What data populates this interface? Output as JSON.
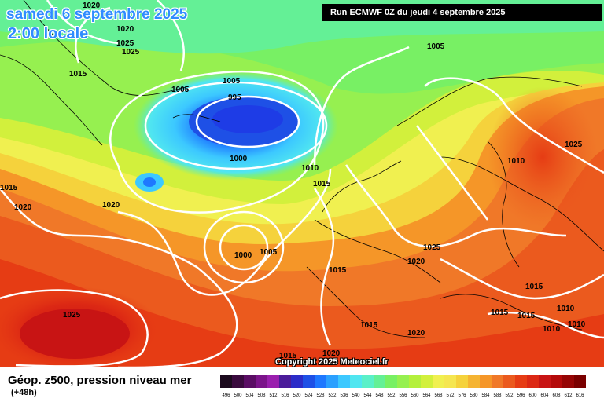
{
  "header": {
    "date": "samedi 6 septembre 2025",
    "time": "2:00 locale",
    "run": "Run ECMWF 0Z du jeudi 4 septembre 2025"
  },
  "copyright": "Copyright 2025 Meteociel.fr",
  "legend": {
    "title": "Géop. z500, pression niveau mer",
    "subtitle": "(+48h)",
    "scale_labels": [
      "496",
      "500",
      "504",
      "508",
      "512",
      "516",
      "520",
      "524",
      "528",
      "532",
      "536",
      "540",
      "544",
      "548",
      "552",
      "556",
      "560",
      "564",
      "568",
      "572",
      "576",
      "580",
      "584",
      "588",
      "592",
      "596",
      "600",
      "604",
      "608",
      "612",
      "616"
    ],
    "scale_colors": [
      "#1c0a1e",
      "#3a0a3e",
      "#5a0d64",
      "#7b148a",
      "#9a1fae",
      "#4b1c9a",
      "#2c2cc8",
      "#1e50e6",
      "#1e78ff",
      "#2aa0ff",
      "#3cc8ff",
      "#50e6f0",
      "#5af0c8",
      "#64f096",
      "#78f064",
      "#96f050",
      "#b4f03c",
      "#d2f03c",
      "#f0f050",
      "#f5e650",
      "#f5d23c",
      "#f5b432",
      "#f59628",
      "#f07828",
      "#eb5a1e",
      "#e63c14",
      "#dc2814",
      "#c81414",
      "#b40a0a",
      "#960505",
      "#7a0000"
    ]
  },
  "isobars": [
    "1020",
    "1025",
    "1025",
    "1015",
    "1005",
    "1005",
    "995",
    "1000",
    "1010",
    "1015",
    "1020",
    "1020",
    "1025",
    "1015",
    "1000",
    "1005",
    "1025",
    "1020",
    "1015",
    "1015",
    "1020",
    "1005",
    "1015",
    "1015",
    "1015",
    "1010",
    "1010",
    "1010",
    "1015",
    "1025",
    "1010"
  ],
  "colors": {
    "title": "#2f8cff"
  }
}
